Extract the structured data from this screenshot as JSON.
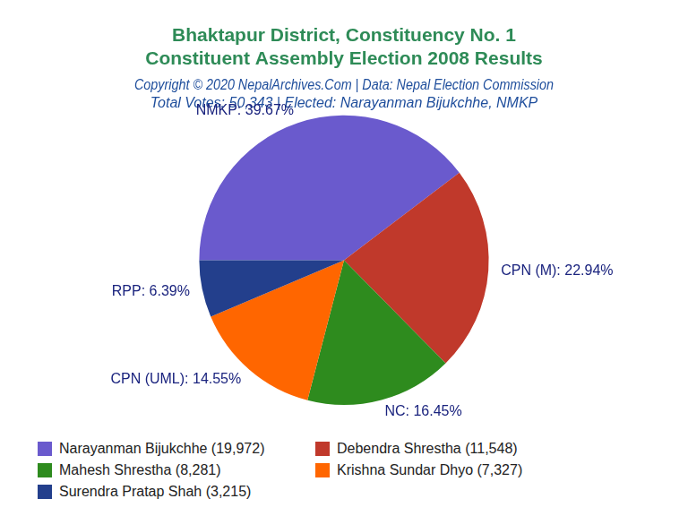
{
  "chart_data": {
    "type": "pie",
    "title": [
      "Bhaktapur District, Constituency No. 1",
      "Constituent Assembly Election 2008 Results"
    ],
    "subtitle": [
      "Copyright © 2020 NepalArchives.Com | Data: Nepal Election Commission",
      "Total Votes: 50,343 | Elected: Narayanman Bijukchhe, NMKP"
    ],
    "categories": [
      "NMKP",
      "CPN (M)",
      "NC",
      "CPN (UML)",
      "RPP"
    ],
    "values": [
      39.67,
      22.94,
      16.45,
      14.55,
      6.39
    ],
    "value_labels": [
      "NMKP: 39.67%",
      "CPN (M): 22.94%",
      "NC: 16.45%",
      "CPN (UML): 14.55%",
      "RPP: 6.39%"
    ],
    "colors": [
      "#6a5acd",
      "#c0392b",
      "#2e8b1e",
      "#ff6600",
      "#233f8c"
    ],
    "legend_labels": [
      "Narayanman Bijukchhe (19,972)",
      "Debendra Shrestha (11,548)",
      "Mahesh Shrestha (8,281)",
      "Krishna Sundar Dhyo (7,327)",
      "Surendra Pratap Shah (3,215)"
    ],
    "legend": "bottom",
    "data_labels": true
  }
}
